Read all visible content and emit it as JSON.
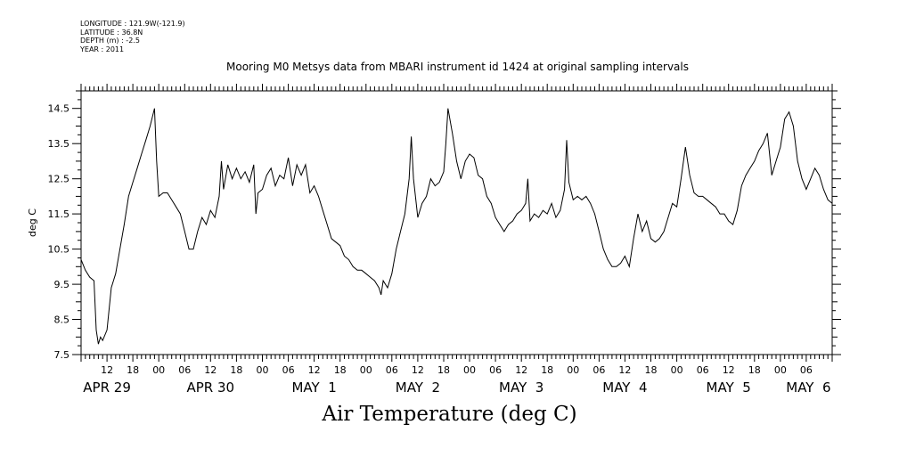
{
  "meta": {
    "longitude": "LONGITUDE : 121.9W(-121.9)",
    "latitude": "LATITUDE : 36.8N",
    "depth": "DEPTH (m) : -2.5",
    "year": "YEAR : 2011"
  },
  "chart_data": {
    "type": "line",
    "title": "Mooring M0 Metsys data from MBARI instrument id 1424 at original sampling intervals",
    "bottom_title": "Air Temperature (deg C)",
    "ylabel": "deg C",
    "xlabel": "",
    "ylim": [
      7.5,
      15.0
    ],
    "yticks": [
      "14.5",
      "13.5",
      "12.5",
      "11.5",
      "10.5",
      "9.5",
      "8.5",
      "7.5"
    ],
    "xlim_hours": [
      0,
      174
    ],
    "x_hour_ticks": [
      "12",
      "18",
      "00",
      "06",
      "12",
      "18",
      "00",
      "06",
      "12",
      "18",
      "00",
      "06",
      "12",
      "18",
      "00",
      "06",
      "12",
      "18",
      "00",
      "06",
      "12",
      "18",
      "00",
      "06",
      "12",
      "18",
      "00",
      "06"
    ],
    "x_day_labels": [
      "APR 29",
      "APR 30",
      "MAY  1",
      "MAY  2",
      "MAY  3",
      "MAY  4",
      "MAY  5",
      "MAY  6"
    ],
    "grid": false,
    "series": [
      {
        "values": [
          [
            0,
            10.2
          ],
          [
            1,
            9.9
          ],
          [
            2,
            9.7
          ],
          [
            3,
            9.6
          ],
          [
            3.5,
            8.2
          ],
          [
            4,
            7.8
          ],
          [
            4.5,
            8.0
          ],
          [
            5,
            7.9
          ],
          [
            6,
            8.2
          ],
          [
            7,
            9.4
          ],
          [
            8,
            9.8
          ],
          [
            9,
            10.5
          ],
          [
            10,
            11.2
          ],
          [
            11,
            12.0
          ],
          [
            12,
            12.4
          ],
          [
            13,
            12.8
          ],
          [
            14,
            13.2
          ],
          [
            15,
            13.6
          ],
          [
            16,
            14.0
          ],
          [
            17,
            14.5
          ],
          [
            17.5,
            13.0
          ],
          [
            18,
            12.0
          ],
          [
            19,
            12.1
          ],
          [
            20,
            12.1
          ],
          [
            21,
            11.9
          ],
          [
            22,
            11.7
          ],
          [
            23,
            11.5
          ],
          [
            24,
            11.0
          ],
          [
            25,
            10.5
          ],
          [
            26,
            10.5
          ],
          [
            27,
            11.0
          ],
          [
            28,
            11.4
          ],
          [
            29,
            11.2
          ],
          [
            30,
            11.6
          ],
          [
            31,
            11.4
          ],
          [
            32,
            12.0
          ],
          [
            32.5,
            13.0
          ],
          [
            33,
            12.2
          ],
          [
            34,
            12.9
          ],
          [
            35,
            12.5
          ],
          [
            36,
            12.8
          ],
          [
            37,
            12.5
          ],
          [
            38,
            12.7
          ],
          [
            39,
            12.4
          ],
          [
            40,
            12.9
          ],
          [
            40.5,
            11.5
          ],
          [
            41,
            12.1
          ],
          [
            42,
            12.2
          ],
          [
            43,
            12.6
          ],
          [
            44,
            12.8
          ],
          [
            45,
            12.3
          ],
          [
            46,
            12.6
          ],
          [
            47,
            12.5
          ],
          [
            48,
            13.1
          ],
          [
            49,
            12.3
          ],
          [
            50,
            12.9
          ],
          [
            51,
            12.6
          ],
          [
            52,
            12.9
          ],
          [
            53,
            12.1
          ],
          [
            54,
            12.3
          ],
          [
            55,
            12.0
          ],
          [
            56,
            11.6
          ],
          [
            57,
            11.2
          ],
          [
            58,
            10.8
          ],
          [
            59,
            10.7
          ],
          [
            60,
            10.6
          ],
          [
            61,
            10.3
          ],
          [
            62,
            10.2
          ],
          [
            63,
            10.0
          ],
          [
            64,
            9.9
          ],
          [
            65,
            9.9
          ],
          [
            66,
            9.8
          ],
          [
            67,
            9.7
          ],
          [
            68,
            9.6
          ],
          [
            69,
            9.4
          ],
          [
            69.5,
            9.2
          ],
          [
            70,
            9.6
          ],
          [
            71,
            9.4
          ],
          [
            72,
            9.8
          ],
          [
            73,
            10.5
          ],
          [
            74,
            11.0
          ],
          [
            75,
            11.5
          ],
          [
            76,
            12.5
          ],
          [
            76.5,
            13.7
          ],
          [
            77,
            12.5
          ],
          [
            78,
            11.4
          ],
          [
            79,
            11.8
          ],
          [
            80,
            12.0
          ],
          [
            81,
            12.5
          ],
          [
            82,
            12.3
          ],
          [
            83,
            12.4
          ],
          [
            84,
            12.7
          ],
          [
            84.5,
            13.5
          ],
          [
            85,
            14.5
          ],
          [
            86,
            13.8
          ],
          [
            87,
            13.0
          ],
          [
            88,
            12.5
          ],
          [
            89,
            13.0
          ],
          [
            90,
            13.2
          ],
          [
            91,
            13.1
          ],
          [
            92,
            12.6
          ],
          [
            93,
            12.5
          ],
          [
            94,
            12.0
          ],
          [
            95,
            11.8
          ],
          [
            96,
            11.4
          ],
          [
            97,
            11.2
          ],
          [
            98,
            11.0
          ],
          [
            99,
            11.2
          ],
          [
            100,
            11.3
          ],
          [
            101,
            11.5
          ],
          [
            102,
            11.6
          ],
          [
            103,
            11.8
          ],
          [
            103.5,
            12.5
          ],
          [
            104,
            11.3
          ],
          [
            105,
            11.5
          ],
          [
            106,
            11.4
          ],
          [
            107,
            11.6
          ],
          [
            108,
            11.5
          ],
          [
            109,
            11.8
          ],
          [
            110,
            11.4
          ],
          [
            111,
            11.6
          ],
          [
            112,
            12.2
          ],
          [
            112.5,
            13.6
          ],
          [
            113,
            12.4
          ],
          [
            114,
            11.9
          ],
          [
            115,
            12.0
          ],
          [
            116,
            11.9
          ],
          [
            117,
            12.0
          ],
          [
            118,
            11.8
          ],
          [
            119,
            11.5
          ],
          [
            120,
            11.0
          ],
          [
            121,
            10.5
          ],
          [
            122,
            10.2
          ],
          [
            123,
            10.0
          ],
          [
            124,
            10.0
          ],
          [
            125,
            10.1
          ],
          [
            126,
            10.3
          ],
          [
            127,
            10.0
          ],
          [
            128,
            10.8
          ],
          [
            129,
            11.5
          ],
          [
            130,
            11.0
          ],
          [
            131,
            11.3
          ],
          [
            132,
            10.8
          ],
          [
            133,
            10.7
          ],
          [
            134,
            10.8
          ],
          [
            135,
            11.0
          ],
          [
            136,
            11.4
          ],
          [
            137,
            11.8
          ],
          [
            138,
            11.7
          ],
          [
            139,
            12.5
          ],
          [
            140,
            13.4
          ],
          [
            141,
            12.6
          ],
          [
            142,
            12.1
          ],
          [
            143,
            12.0
          ],
          [
            144,
            12.0
          ],
          [
            145,
            11.9
          ],
          [
            146,
            11.8
          ],
          [
            147,
            11.7
          ],
          [
            148,
            11.5
          ],
          [
            149,
            11.5
          ],
          [
            150,
            11.3
          ],
          [
            151,
            11.2
          ],
          [
            152,
            11.6
          ],
          [
            153,
            12.3
          ],
          [
            154,
            12.6
          ],
          [
            155,
            12.8
          ],
          [
            156,
            13.0
          ],
          [
            157,
            13.3
          ],
          [
            158,
            13.5
          ],
          [
            159,
            13.8
          ],
          [
            160,
            12.6
          ],
          [
            161,
            13.0
          ],
          [
            162,
            13.4
          ],
          [
            163,
            14.2
          ],
          [
            164,
            14.4
          ],
          [
            165,
            14.0
          ],
          [
            166,
            13.0
          ],
          [
            167,
            12.5
          ],
          [
            168,
            12.2
          ],
          [
            169,
            12.5
          ],
          [
            170,
            12.8
          ],
          [
            171,
            12.6
          ],
          [
            172,
            12.2
          ],
          [
            173,
            11.9
          ],
          [
            174,
            11.8
          ]
        ]
      }
    ]
  }
}
